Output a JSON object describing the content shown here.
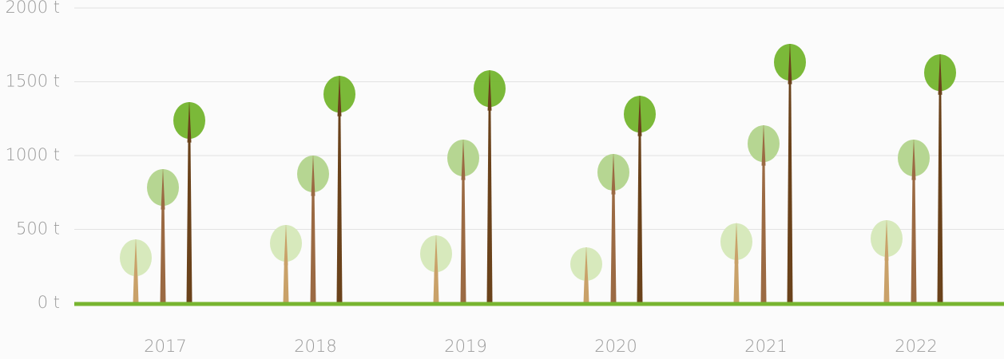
{
  "chart_data": {
    "type": "tree-bar",
    "categories": [
      "2017",
      "2018",
      "2019",
      "2020",
      "2021",
      "2022"
    ],
    "series": [
      {
        "color": "#d5e8b8",
        "values": [
          432,
          530,
          459,
          378,
          541,
          562
        ]
      },
      {
        "color": "#b2d48c",
        "values": [
          908,
          1000,
          1108,
          1011,
          1205,
          1108
        ]
      },
      {
        "color": "#74b52e",
        "values": [
          1362,
          1540,
          1578,
          1405,
          1757,
          1686
        ]
      }
    ],
    "ylim": [
      0,
      2000
    ],
    "yticks": [
      {
        "value": 0,
        "label": "0 t"
      },
      {
        "value": 500,
        "label": "500 t"
      },
      {
        "value": 1000,
        "label": "1000 t"
      },
      {
        "value": 1500,
        "label": "1500 t"
      },
      {
        "value": 2000,
        "label": "2000 t"
      }
    ],
    "grid": true
  }
}
